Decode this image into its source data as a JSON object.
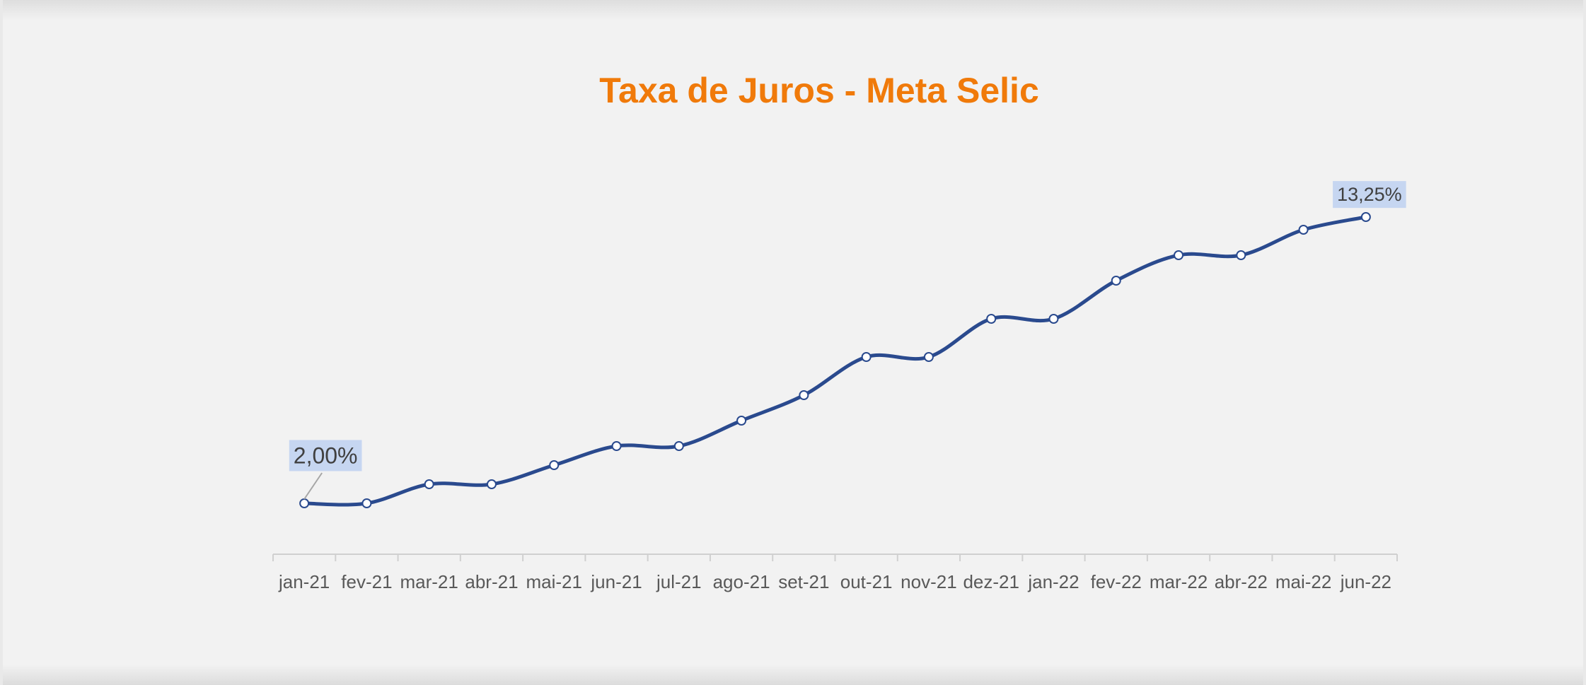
{
  "chart_data": {
    "type": "line",
    "title": "Taxa de Juros - Meta Selic",
    "categories": [
      "jan-21",
      "fev-21",
      "mar-21",
      "abr-21",
      "mai-21",
      "jun-21",
      "jul-21",
      "ago-21",
      "set-21",
      "out-21",
      "nov-21",
      "dez-21",
      "jan-22",
      "fev-22",
      "mar-22",
      "abr-22",
      "mai-22",
      "jun-22"
    ],
    "series": [
      {
        "name": "Meta Selic",
        "color": "#2a4a8e",
        "values": [
          2.0,
          2.0,
          2.75,
          2.75,
          3.5,
          4.25,
          4.25,
          5.25,
          6.25,
          7.75,
          7.75,
          9.25,
          9.25,
          10.75,
          11.75,
          11.75,
          12.75,
          13.25
        ],
        "value_labels": [
          "2,00%",
          null,
          null,
          null,
          null,
          null,
          null,
          null,
          null,
          null,
          null,
          null,
          null,
          null,
          null,
          null,
          null,
          "13,25%"
        ]
      }
    ],
    "ylim": [
      0,
      15
    ]
  }
}
